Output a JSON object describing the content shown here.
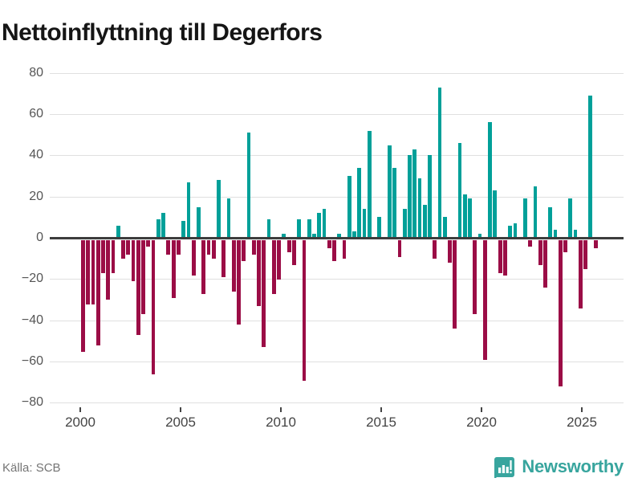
{
  "title": "Nettoinflyttning till Degerfors",
  "footer": {
    "source": "Källa: SCB"
  },
  "brand": {
    "name": "Newsworthy",
    "logo_icon": "bar-chart-badge-icon"
  },
  "colors": {
    "positive_bar": "#00A099",
    "negative_bar": "#9B0D46",
    "zero_line": "#3d3d3d",
    "gridline": "#e0e0e0",
    "brand_teal": "#38A59E"
  },
  "chart_data": {
    "type": "bar",
    "title": "Nettoinflyttning till Degerfors",
    "xlabel": "",
    "ylabel": "",
    "ylim": [
      -80,
      80
    ],
    "grid": "horizontal",
    "legend": "none",
    "y_ticks": [
      80,
      60,
      40,
      20,
      0,
      -20,
      -40,
      -60,
      -80
    ],
    "x_tick_years": [
      2000,
      2005,
      2010,
      2015,
      2020,
      2025
    ],
    "frequency": "quarterly",
    "start_year": 2000,
    "start_quarter": 1,
    "values": [
      -54,
      -31,
      -31,
      -51,
      -16,
      -29,
      -16,
      6,
      -9,
      -7,
      -20,
      -46,
      -36,
      -3,
      -65,
      9,
      12,
      -7,
      -28,
      -7,
      8,
      27,
      -17,
      15,
      -26,
      -7,
      -9,
      28,
      -18,
      19,
      -25,
      -41,
      -10,
      51,
      -7,
      -32,
      -52,
      9,
      -26,
      -19,
      2,
      -6,
      -12,
      9,
      -68,
      9,
      2,
      12,
      14,
      -4,
      -10,
      2,
      -9,
      30,
      3,
      34,
      14,
      52,
      0,
      10,
      0,
      45,
      34,
      -8,
      14,
      40,
      43,
      29,
      16,
      40,
      -9,
      73,
      10,
      -11,
      -43,
      46,
      21,
      19,
      -36,
      2,
      -58,
      56,
      23,
      -16,
      -17,
      6,
      7,
      0,
      19,
      -3,
      25,
      -12,
      -23,
      15,
      4,
      -71,
      -6,
      19,
      4,
      -33,
      -14,
      69,
      -4
    ]
  }
}
